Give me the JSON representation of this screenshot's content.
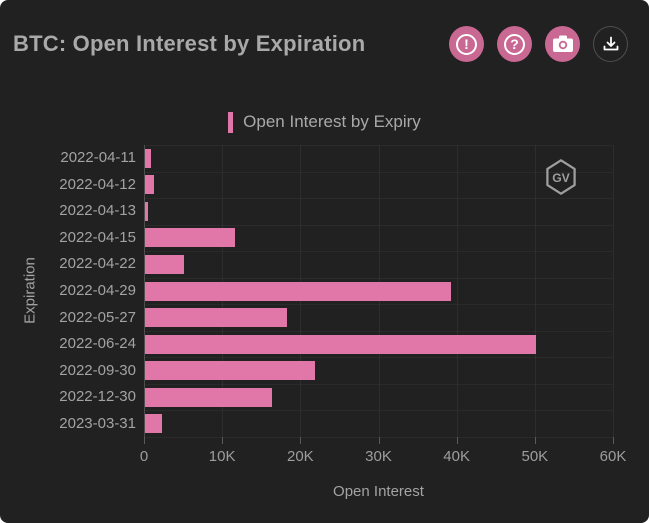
{
  "header": {
    "title": "BTC: Open Interest by Expiration",
    "buttons": [
      {
        "name": "alert-button",
        "glyph": "!"
      },
      {
        "name": "help-button",
        "glyph": "?"
      },
      {
        "name": "camera-button",
        "glyph": ""
      },
      {
        "name": "download-button",
        "glyph": ""
      }
    ],
    "button_pink": "#c96892"
  },
  "legend": {
    "label": "Open Interest by Expiry",
    "swatch_color": "#e176a8"
  },
  "watermark": {
    "label": "GV"
  },
  "chart_data": {
    "type": "bar",
    "orientation": "horizontal",
    "title": "Open Interest by Expiry",
    "xlabel": "Open Interest",
    "ylabel": "Expiration",
    "categories": [
      "2022-04-11",
      "2022-04-12",
      "2022-04-13",
      "2022-04-15",
      "2022-04-22",
      "2022-04-29",
      "2022-05-27",
      "2022-06-24",
      "2022-09-30",
      "2022-12-30",
      "2023-03-31"
    ],
    "values": [
      800,
      1100,
      400,
      11500,
      5000,
      39200,
      18200,
      50000,
      21800,
      16200,
      2200
    ],
    "xlim": [
      0,
      60000
    ],
    "xtick_values": [
      0,
      10000,
      20000,
      30000,
      40000,
      50000,
      60000
    ],
    "xtick_labels": [
      "0",
      "10K",
      "20K",
      "30K",
      "40K",
      "50K",
      "60K"
    ],
    "bar_color": "#e176a8",
    "grid": true,
    "legend_position": "top",
    "background_color": "#212121"
  }
}
